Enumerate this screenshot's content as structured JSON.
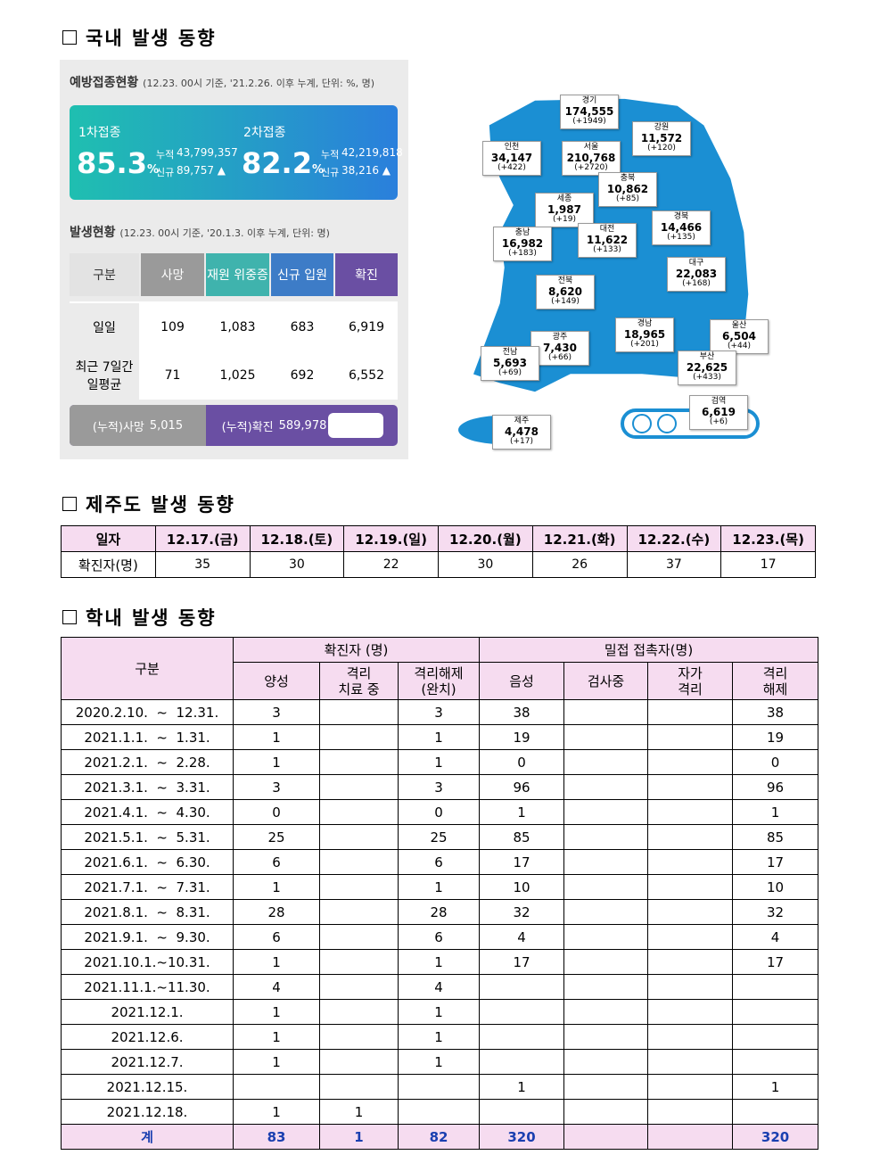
{
  "sections": [
    {
      "title": "국내 발생 동향"
    },
    {
      "title": "제주도 발생 동향"
    },
    {
      "title": "학내 발생 동향"
    }
  ],
  "vaccination": {
    "title": "예방접종현황",
    "note": "(12.23. 00시 기준, '21.2.26. 이후 누계, 단위: %, 명)",
    "doses": [
      {
        "label": "1차접종",
        "rate": 85.3,
        "unit": "%",
        "cumulative_label": "누적",
        "cumulative": "43,799,357",
        "new_label": "신규",
        "new": "89,757 ▲"
      },
      {
        "label": "2차접종",
        "rate": 82.2,
        "unit": "%",
        "cumulative_label": "누적",
        "cumulative": "42,219,818",
        "new_label": "신규",
        "new": "38,216 ▲"
      }
    ]
  },
  "outbreak": {
    "title": "발생현황",
    "note": "(12.23. 00시 기준, '20.1.3. 이후 누계, 단위: 명)",
    "headers": [
      "구분",
      "사망",
      "재원 위중증",
      "신규 입원",
      "확진"
    ],
    "rows": [
      [
        "일일",
        109,
        "1,083",
        683,
        "6,919"
      ],
      [
        "최근 7일간\n일평균",
        71,
        "1,025",
        692,
        "6,552"
      ]
    ],
    "totals": [
      {
        "label": "(누적)사망",
        "value": "5,015"
      },
      {
        "label": "(누적)확진",
        "value": "589,978"
      }
    ]
  },
  "map": {
    "regions": [
      {
        "name": "경기",
        "count": "174,555",
        "change": "(+1949)"
      },
      {
        "name": "강원",
        "count": "11,572",
        "change": "(+120)"
      },
      {
        "name": "인천",
        "count": "34,147",
        "change": "(+422)"
      },
      {
        "name": "서울",
        "count": "210,768",
        "change": "(+2720)"
      },
      {
        "name": "충북",
        "count": "10,862",
        "change": "(+85)"
      },
      {
        "name": "세종",
        "count": "1,987",
        "change": "(+19)"
      },
      {
        "name": "경북",
        "count": "14,466",
        "change": "(+135)"
      },
      {
        "name": "충남",
        "count": "16,982",
        "change": "(+183)"
      },
      {
        "name": "대전",
        "count": "11,622",
        "change": "(+133)"
      },
      {
        "name": "대구",
        "count": "22,083",
        "change": "(+168)"
      },
      {
        "name": "전북",
        "count": "8,620",
        "change": "(+149)"
      },
      {
        "name": "울산",
        "count": "6,504",
        "change": "(+44)"
      },
      {
        "name": "경남",
        "count": "18,965",
        "change": "(+201)"
      },
      {
        "name": "광주",
        "count": "7,430",
        "change": "(+66)"
      },
      {
        "name": "전남",
        "count": "5,693",
        "change": "(+69)"
      },
      {
        "name": "부산",
        "count": "22,625",
        "change": "(+433)"
      },
      {
        "name": "검역",
        "count": "6,619",
        "change": "(+6)"
      },
      {
        "name": "제주",
        "count": "4,478",
        "change": "(+17)"
      }
    ]
  },
  "jeju_table": {
    "header": [
      "일자",
      "12.17.(금)",
      "12.18.(토)",
      "12.19.(일)",
      "12.20.(월)",
      "12.21.(화)",
      "12.22.(수)",
      "12.23.(목)"
    ],
    "row": [
      "확진자(명)",
      35,
      30,
      22,
      30,
      26,
      37,
      17
    ]
  },
  "school_table": {
    "headers": {
      "category": "구분",
      "confirmed": "확진자 (명)",
      "contacts": "밀접 접촉자(명)",
      "columns": [
        "양성",
        "격리\n치료 중",
        "격리해제\n(완치)",
        "음성",
        "검사중",
        "자가\n격리",
        "격리\n해제"
      ]
    },
    "rows": [
      [
        "2020.2.10.  ~  12.31.",
        3,
        null,
        3,
        38,
        null,
        null,
        38
      ],
      [
        "2021.1.1.  ~  1.31.",
        1,
        null,
        1,
        19,
        null,
        null,
        19
      ],
      [
        "2021.2.1.  ~  2.28.",
        1,
        null,
        1,
        0,
        null,
        null,
        0
      ],
      [
        "2021.3.1.  ~  3.31.",
        3,
        null,
        3,
        96,
        null,
        null,
        96
      ],
      [
        "2021.4.1.  ~  4.30.",
        0,
        null,
        0,
        1,
        null,
        null,
        1
      ],
      [
        "2021.5.1.  ~  5.31.",
        25,
        null,
        25,
        85,
        null,
        null,
        85
      ],
      [
        "2021.6.1.  ~  6.30.",
        6,
        null,
        6,
        17,
        null,
        null,
        17
      ],
      [
        "2021.7.1.  ~  7.31.",
        1,
        null,
        1,
        10,
        null,
        null,
        10
      ],
      [
        "2021.8.1.  ~  8.31.",
        28,
        null,
        28,
        32,
        null,
        null,
        32
      ],
      [
        "2021.9.1.  ~  9.30.",
        6,
        null,
        6,
        4,
        null,
        null,
        4
      ],
      [
        "2021.10.1.~10.31.",
        1,
        null,
        1,
        17,
        null,
        null,
        17
      ],
      [
        "2021.11.1.~11.30.",
        4,
        null,
        4,
        null,
        null,
        null,
        null
      ],
      [
        "2021.12.1.",
        1,
        null,
        1,
        null,
        null,
        null,
        null
      ],
      [
        "2021.12.6.",
        1,
        null,
        1,
        null,
        null,
        null,
        null
      ],
      [
        "2021.12.7.",
        1,
        null,
        1,
        null,
        null,
        null,
        null
      ],
      [
        "2021.12.15.",
        null,
        null,
        null,
        1,
        null,
        null,
        1
      ],
      [
        "2021.12.18.",
        1,
        1,
        null,
        null,
        null,
        null,
        null
      ]
    ],
    "total": [
      "계",
      83,
      1,
      82,
      320,
      null,
      null,
      320
    ]
  }
}
